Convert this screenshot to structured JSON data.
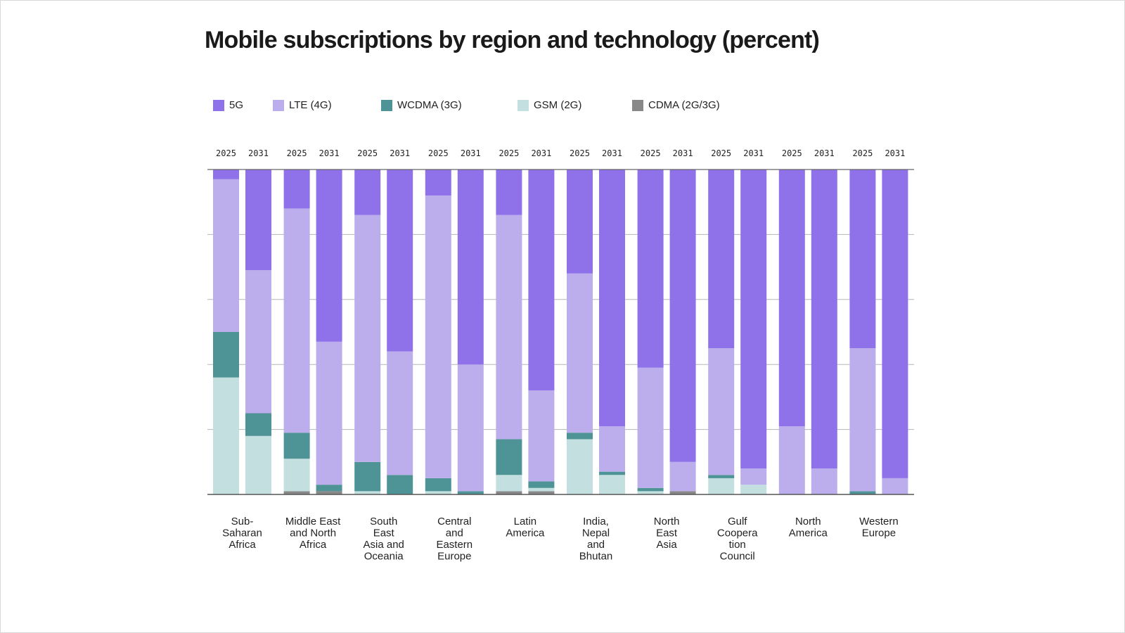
{
  "chart_data": {
    "type": "bar",
    "stacked": true,
    "title": "Mobile subscriptions by region and technology (percent)",
    "ylim": [
      0,
      100
    ],
    "grid": true,
    "legend_position": "top-left",
    "regions": [
      "Sub-\nSaharan\nAfrica",
      "Middle East\nand North\nAfrica",
      "South\nEast\nAsia and\nOceania",
      "Central\nand\nEastern\nEurope",
      "Latin\nAmerica",
      "India,\nNepal\nand\nBhutan",
      "North\nEast\nAsia",
      "Gulf\nCoopera\ntion\nCouncil",
      "North\nAmerica",
      "Western\nEurope"
    ],
    "years": [
      "2025",
      "2031"
    ],
    "series": [
      {
        "name": "CDMA (2G/3G)",
        "color": "#888888",
        "values": [
          [
            0,
            0
          ],
          [
            1,
            1
          ],
          [
            0,
            0
          ],
          [
            0,
            0
          ],
          [
            1,
            1
          ],
          [
            0,
            0
          ],
          [
            0,
            1
          ],
          [
            0,
            0
          ],
          [
            0,
            0
          ],
          [
            0,
            0
          ]
        ]
      },
      {
        "name": "GSM (2G)",
        "color": "#c4dfdf",
        "values": [
          [
            36,
            18
          ],
          [
            10,
            0
          ],
          [
            1,
            0
          ],
          [
            1,
            0
          ],
          [
            5,
            1
          ],
          [
            17,
            6
          ],
          [
            1,
            0
          ],
          [
            5,
            3
          ],
          [
            0,
            0
          ],
          [
            0,
            0
          ]
        ]
      },
      {
        "name": "WCDMA (3G)",
        "color": "#4e9396",
        "values": [
          [
            14,
            7
          ],
          [
            8,
            2
          ],
          [
            9,
            6
          ],
          [
            4,
            1
          ],
          [
            11,
            2
          ],
          [
            2,
            1
          ],
          [
            1,
            0
          ],
          [
            1,
            0
          ],
          [
            0,
            0
          ],
          [
            1,
            0
          ]
        ]
      },
      {
        "name": "LTE (4G)",
        "color": "#bcaeec",
        "values": [
          [
            47,
            44
          ],
          [
            69,
            44
          ],
          [
            76,
            38
          ],
          [
            87,
            39
          ],
          [
            69,
            28
          ],
          [
            49,
            14
          ],
          [
            37,
            9
          ],
          [
            39,
            5
          ],
          [
            21,
            8
          ],
          [
            44,
            5
          ]
        ]
      },
      {
        "name": "5G",
        "color": "#8f72e9",
        "values": [
          [
            3,
            31
          ],
          [
            12,
            53
          ],
          [
            14,
            56
          ],
          [
            8,
            60
          ],
          [
            14,
            68
          ],
          [
            32,
            79
          ],
          [
            61,
            90
          ],
          [
            55,
            92
          ],
          [
            79,
            92
          ],
          [
            55,
            95
          ]
        ]
      }
    ],
    "legend_order": [
      "5G",
      "LTE (4G)",
      "WCDMA (3G)",
      "GSM (2G)",
      "CDMA (2G/3G)"
    ]
  }
}
